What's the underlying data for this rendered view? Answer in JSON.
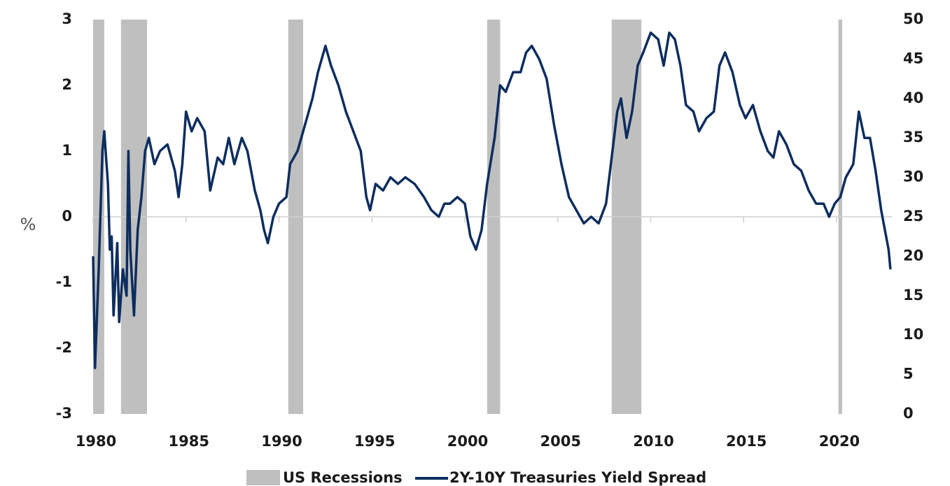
{
  "chart_data": {
    "type": "line",
    "y_label": "%",
    "xlim": [
      1980,
      2023
    ],
    "xticks": [
      1980,
      1985,
      1990,
      1995,
      2000,
      2005,
      2010,
      2015,
      2020
    ],
    "ylim": [
      -3,
      3
    ],
    "yticks": [
      -3,
      -2,
      -1,
      0,
      1,
      2,
      3
    ],
    "y2lim": [
      0,
      50
    ],
    "y2ticks": [
      0,
      5,
      10,
      15,
      20,
      25,
      30,
      35,
      40,
      45,
      50
    ],
    "recessions": {
      "name": "US Recessions",
      "color": "#bfbfbf",
      "axis": "y2",
      "spans": [
        [
          1980.0,
          1980.6
        ],
        [
          1981.5,
          1982.9
        ],
        [
          1990.5,
          1991.3
        ],
        [
          2001.2,
          2001.9
        ],
        [
          2007.9,
          2009.5
        ],
        [
          2020.1,
          2020.3
        ]
      ]
    },
    "series": [
      {
        "name": "2Y-10Y Treasuries Yield Spread",
        "color": "#0d2d5e",
        "x": [
          1980.0,
          1980.1,
          1980.3,
          1980.5,
          1980.6,
          1980.8,
          1980.9,
          1981.0,
          1981.1,
          1981.3,
          1981.4,
          1981.6,
          1981.8,
          1981.9,
          1982.0,
          1982.2,
          1982.4,
          1982.6,
          1982.8,
          1983.0,
          1983.3,
          1983.6,
          1984.0,
          1984.4,
          1984.6,
          1984.8,
          1985.0,
          1985.3,
          1985.6,
          1986.0,
          1986.3,
          1986.7,
          1987.0,
          1987.3,
          1987.6,
          1988.0,
          1988.3,
          1988.7,
          1989.0,
          1989.2,
          1989.4,
          1989.7,
          1990.0,
          1990.4,
          1990.6,
          1991.0,
          1991.4,
          1991.8,
          1992.1,
          1992.5,
          1992.8,
          1993.2,
          1993.6,
          1994.0,
          1994.4,
          1994.7,
          1994.9,
          1995.2,
          1995.6,
          1996.0,
          1996.4,
          1996.8,
          1997.3,
          1997.8,
          1998.2,
          1998.6,
          1998.9,
          1999.2,
          1999.6,
          2000.0,
          2000.3,
          2000.6,
          2000.9,
          2001.2,
          2001.6,
          2001.9,
          2002.2,
          2002.6,
          2003.0,
          2003.3,
          2003.6,
          2004.0,
          2004.4,
          2004.8,
          2005.2,
          2005.6,
          2006.0,
          2006.4,
          2006.8,
          2007.2,
          2007.6,
          2007.9,
          2008.2,
          2008.4,
          2008.7,
          2009.0,
          2009.3,
          2009.6,
          2010.0,
          2010.4,
          2010.7,
          2011.0,
          2011.3,
          2011.6,
          2011.9,
          2012.3,
          2012.6,
          2013.0,
          2013.4,
          2013.7,
          2014.0,
          2014.4,
          2014.8,
          2015.1,
          2015.5,
          2015.9,
          2016.3,
          2016.6,
          2016.9,
          2017.3,
          2017.7,
          2018.1,
          2018.5,
          2018.9,
          2019.3,
          2019.6,
          2019.9,
          2020.2,
          2020.5,
          2020.9,
          2021.2,
          2021.5,
          2021.8,
          2022.1,
          2022.4,
          2022.6,
          2022.8,
          2022.9
        ],
        "values": [
          -0.6,
          -2.3,
          -0.8,
          1.0,
          1.3,
          0.5,
          -0.5,
          -0.3,
          -1.5,
          -0.4,
          -1.6,
          -0.8,
          -1.2,
          1.0,
          -0.5,
          -1.5,
          -0.2,
          0.3,
          1.0,
          1.2,
          0.8,
          1.0,
          1.1,
          0.7,
          0.3,
          0.8,
          1.6,
          1.3,
          1.5,
          1.3,
          0.4,
          0.9,
          0.8,
          1.2,
          0.8,
          1.2,
          1.0,
          0.4,
          0.1,
          -0.2,
          -0.4,
          0.0,
          0.2,
          0.3,
          0.8,
          1.0,
          1.4,
          1.8,
          2.2,
          2.6,
          2.3,
          2.0,
          1.6,
          1.3,
          1.0,
          0.3,
          0.1,
          0.5,
          0.4,
          0.6,
          0.5,
          0.6,
          0.5,
          0.3,
          0.1,
          0.0,
          0.2,
          0.2,
          0.3,
          0.2,
          -0.3,
          -0.5,
          -0.2,
          0.5,
          1.2,
          2.0,
          1.9,
          2.2,
          2.2,
          2.5,
          2.6,
          2.4,
          2.1,
          1.4,
          0.8,
          0.3,
          0.1,
          -0.1,
          0.0,
          -0.1,
          0.2,
          0.9,
          1.6,
          1.8,
          1.2,
          1.6,
          2.3,
          2.5,
          2.8,
          2.7,
          2.3,
          2.8,
          2.7,
          2.3,
          1.7,
          1.6,
          1.3,
          1.5,
          1.6,
          2.3,
          2.5,
          2.2,
          1.7,
          1.5,
          1.7,
          1.3,
          1.0,
          0.9,
          1.3,
          1.1,
          0.8,
          0.7,
          0.4,
          0.2,
          0.2,
          0.0,
          0.2,
          0.3,
          0.6,
          0.8,
          1.6,
          1.2,
          1.2,
          0.7,
          0.1,
          -0.2,
          -0.5,
          -0.8
        ]
      }
    ]
  }
}
